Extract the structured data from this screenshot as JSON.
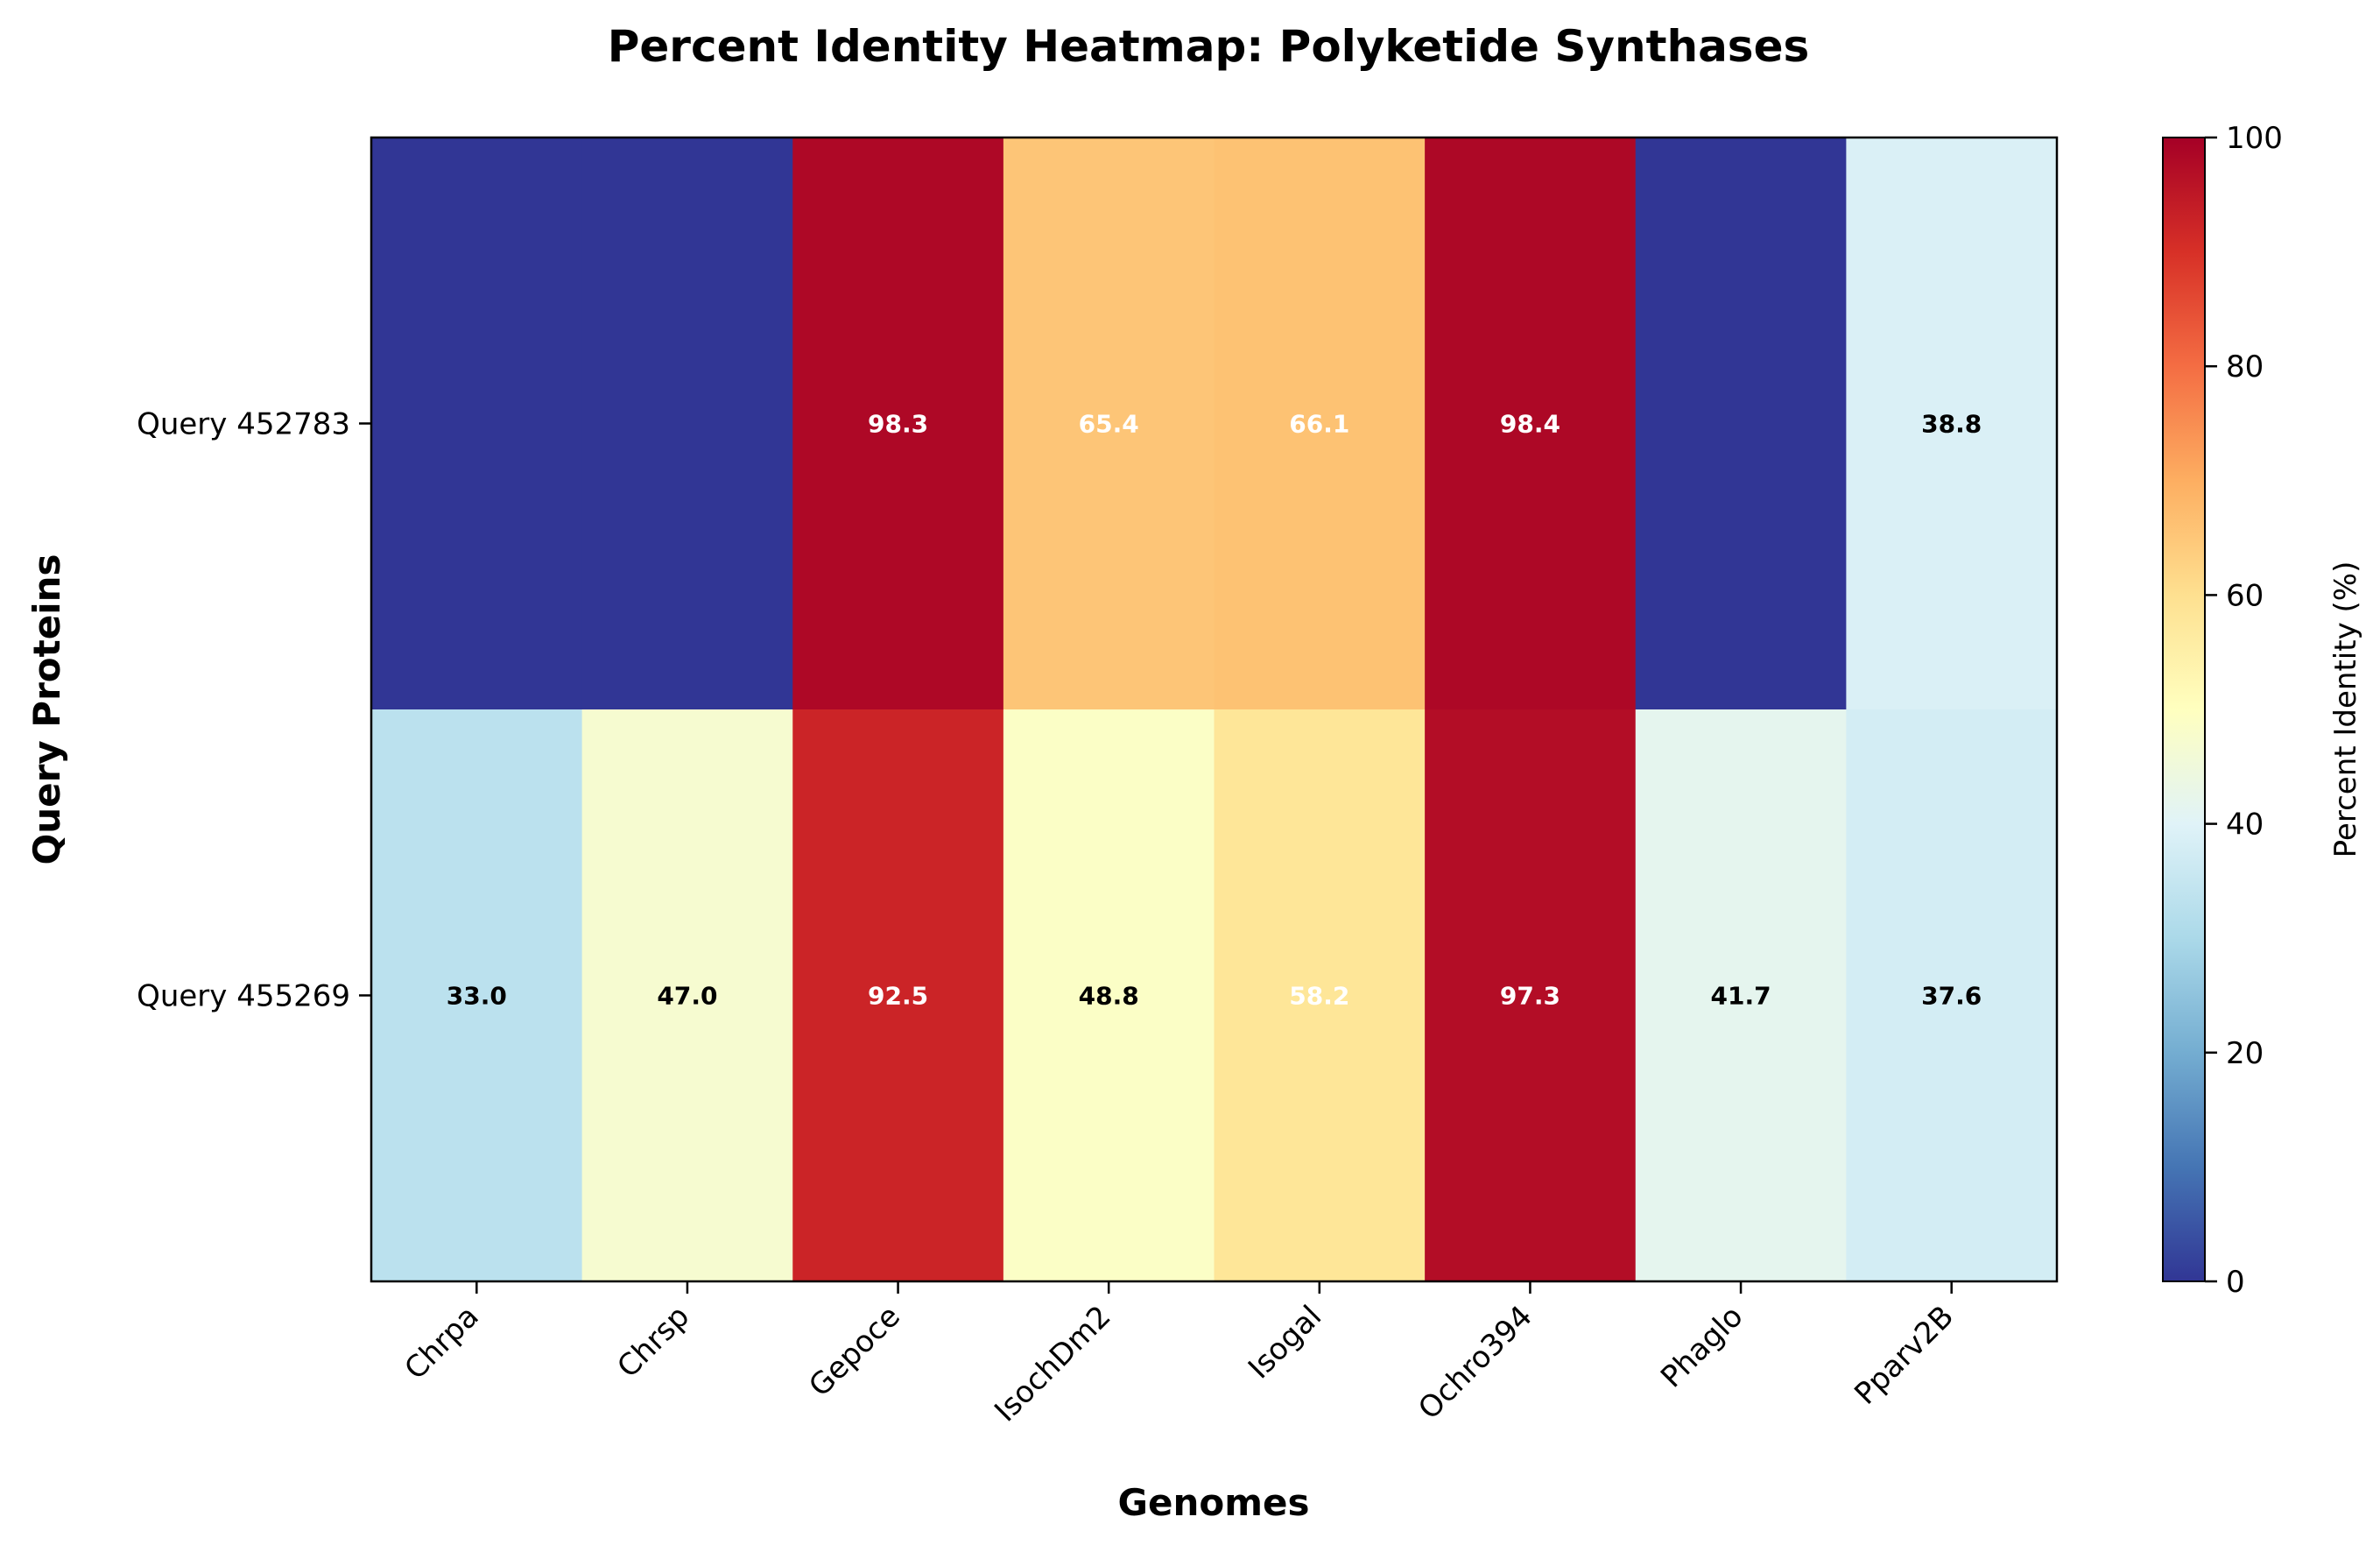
{
  "chart_data": {
    "type": "heatmap",
    "title": "Percent Identity Heatmap: Polyketide Synthases",
    "xlabel": "Genomes",
    "ylabel": "Query Proteins",
    "x_categories": [
      "Chrpa",
      "Chrsp",
      "Gepoce",
      "IsochDm2",
      "Isogal",
      "Ochro394",
      "Phaglo",
      "Pparv2B"
    ],
    "y_categories": [
      "Query 452783",
      "Query 455269"
    ],
    "values": [
      [
        0,
        0,
        98.3,
        65.4,
        66.1,
        98.4,
        0,
        38.8
      ],
      [
        33.0,
        47.0,
        92.5,
        48.8,
        58.2,
        97.3,
        41.7,
        37.6
      ]
    ],
    "cell_labels": [
      [
        "",
        "",
        "98.3",
        "65.4",
        "66.1",
        "98.4",
        "",
        "38.8"
      ],
      [
        "33.0",
        "47.0",
        "92.5",
        "48.8",
        "58.2",
        "97.3",
        "41.7",
        "37.6"
      ]
    ],
    "colormap": "RdYlBu_r",
    "vmin": 0,
    "vmax": 100,
    "colorbar": {
      "label": "Percent Identity (%)",
      "ticks": [
        0,
        20,
        40,
        60,
        80,
        100
      ],
      "tick_labels": [
        "0",
        "20",
        "40",
        "60",
        "80",
        "100"
      ]
    },
    "grid": false
  }
}
